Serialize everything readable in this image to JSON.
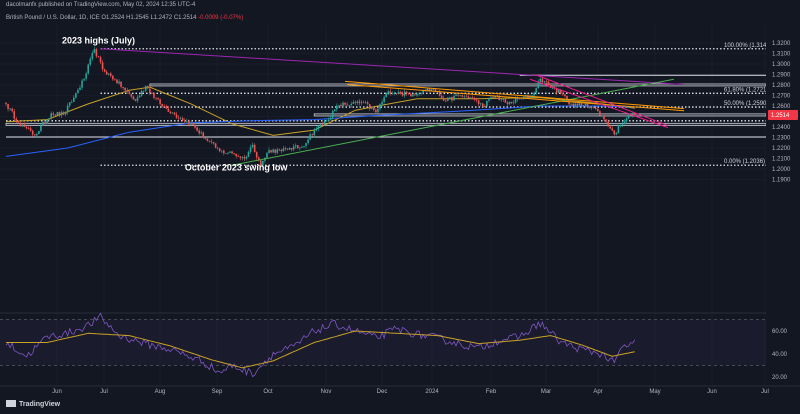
{
  "header": {
    "publisher": "dacolmanfx published on TradingView.com, May 02, 2024 12:35 UTC-4",
    "symbol": "British Pound / U.S. Dollar, 1D, ICE",
    "open": "O1.2524",
    "high": "H1.2545",
    "low": "L1.2472",
    "close": "C1.2514",
    "change": "-0.0009 (-0.07%)"
  },
  "brand": {
    "logo_text": "TradingView"
  },
  "colors": {
    "background": "#131722",
    "up_candle": "#26a69a",
    "down_candle": "#ef5350",
    "ma_short": "#c9a227",
    "ma_long": "#2962ff",
    "uptrend": "#4caf50",
    "downtrend_purple": "#9c27b0",
    "channel_orange": "#ff9800",
    "channel_pink": "#e91e8c",
    "rsi_line": "#7e57c2",
    "rsi_signal": "#c9a227",
    "price_badge": "#f23645"
  },
  "chart_data": [
    {
      "type": "candlestick",
      "title": "British Pound / U.S. Dollar, 1D, ICE",
      "x_tick_labels": [
        "Jun",
        "Jul",
        "Aug",
        "Sep",
        "Oct",
        "Nov",
        "Dec",
        "2024",
        "Feb",
        "Mar",
        "Apr",
        "May",
        "Jun",
        "Jul"
      ],
      "y_tick_labels": [
        "1.1900",
        "1.2000",
        "1.2100",
        "1.2200",
        "1.2300",
        "1.2400",
        "1.2500",
        "1.2600",
        "1.2700",
        "1.2800",
        "1.2900",
        "1.3000",
        "1.3100",
        "1.3200"
      ],
      "ylim": [
        1.19,
        1.325
      ],
      "last_price": "1.2514",
      "swing_path": [
        {
          "t": 0,
          "p": 1.262
        },
        {
          "t": 6,
          "p": 1.244
        },
        {
          "t": 9,
          "p": 1.24
        },
        {
          "t": 14,
          "p": 1.232
        },
        {
          "t": 22,
          "p": 1.253
        },
        {
          "t": 28,
          "p": 1.252
        },
        {
          "t": 33,
          "p": 1.268
        },
        {
          "t": 38,
          "p": 1.286
        },
        {
          "t": 43,
          "p": 1.3142
        },
        {
          "t": 47,
          "p": 1.295
        },
        {
          "t": 53,
          "p": 1.285
        },
        {
          "t": 58,
          "p": 1.275
        },
        {
          "t": 63,
          "p": 1.265
        },
        {
          "t": 68,
          "p": 1.279
        },
        {
          "t": 75,
          "p": 1.262
        },
        {
          "t": 82,
          "p": 1.252
        },
        {
          "t": 90,
          "p": 1.243
        },
        {
          "t": 97,
          "p": 1.229
        },
        {
          "t": 104,
          "p": 1.217
        },
        {
          "t": 110,
          "p": 1.215
        },
        {
          "t": 116,
          "p": 1.21
        },
        {
          "t": 120,
          "p": 1.223
        },
        {
          "t": 124,
          "p": 1.2036
        },
        {
          "t": 128,
          "p": 1.218
        },
        {
          "t": 134,
          "p": 1.217
        },
        {
          "t": 138,
          "p": 1.22
        },
        {
          "t": 144,
          "p": 1.221
        },
        {
          "t": 150,
          "p": 1.237
        },
        {
          "t": 156,
          "p": 1.246
        },
        {
          "t": 162,
          "p": 1.261
        },
        {
          "t": 168,
          "p": 1.262
        },
        {
          "t": 174,
          "p": 1.263
        },
        {
          "t": 180,
          "p": 1.254
        },
        {
          "t": 186,
          "p": 1.274
        },
        {
          "t": 192,
          "p": 1.272
        },
        {
          "t": 198,
          "p": 1.271
        },
        {
          "t": 203,
          "p": 1.275
        },
        {
          "t": 208,
          "p": 1.276
        },
        {
          "t": 214,
          "p": 1.265
        },
        {
          "t": 220,
          "p": 1.27
        },
        {
          "t": 226,
          "p": 1.268
        },
        {
          "t": 232,
          "p": 1.26
        },
        {
          "t": 238,
          "p": 1.27
        },
        {
          "t": 244,
          "p": 1.262
        },
        {
          "t": 250,
          "p": 1.267
        },
        {
          "t": 256,
          "p": 1.27
        },
        {
          "t": 260,
          "p": 1.286
        },
        {
          "t": 264,
          "p": 1.28
        },
        {
          "t": 270,
          "p": 1.272
        },
        {
          "t": 276,
          "p": 1.26
        },
        {
          "t": 282,
          "p": 1.262
        },
        {
          "t": 288,
          "p": 1.255
        },
        {
          "t": 292,
          "p": 1.245
        },
        {
          "t": 296,
          "p": 1.233
        },
        {
          "t": 299,
          "p": 1.242
        },
        {
          "t": 303,
          "p": 1.252
        },
        {
          "t": 306,
          "p": 1.2514
        }
      ],
      "moving_averages": [
        {
          "name": "",
          "color": "#c9a227",
          "points": [
            [
              0,
              1.245
            ],
            [
              20,
              1.247
            ],
            [
              40,
              1.262
            ],
            [
              60,
              1.275
            ],
            [
              70,
              1.278
            ],
            [
              90,
              1.262
            ],
            [
              110,
              1.243
            ],
            [
              130,
              1.232
            ],
            [
              150,
              1.237
            ],
            [
              170,
              1.256
            ],
            [
              200,
              1.267
            ],
            [
              230,
              1.267
            ],
            [
              260,
              1.268
            ],
            [
              290,
              1.262
            ],
            [
              306,
              1.258
            ]
          ]
        },
        {
          "name": "",
          "color": "#2962ff",
          "points": [
            [
              0,
              1.212
            ],
            [
              30,
              1.22
            ],
            [
              60,
              1.235
            ],
            [
              90,
              1.244
            ],
            [
              120,
              1.246
            ],
            [
              150,
              1.247
            ],
            [
              180,
              1.251
            ],
            [
              220,
              1.255
            ],
            [
              260,
              1.26
            ],
            [
              290,
              1.26
            ],
            [
              306,
              1.259
            ]
          ]
        }
      ],
      "horizontal_levels": [
        {
          "price": 1.3145,
          "label": "100.00% (1.3145)",
          "style": "dotted",
          "start_t": 46
        },
        {
          "price": 1.2893,
          "label": "",
          "style": "solid",
          "start_t": 250
        },
        {
          "price": 1.2721,
          "label": "61.80% (1.2721)",
          "style": "dotted",
          "start_t": 46
        },
        {
          "price": 1.259,
          "label": "50.00% (1.2590)",
          "style": "dotted",
          "start_t": 46
        },
        {
          "price": 1.2459,
          "label": "",
          "style": "dotted",
          "start_t": 0
        },
        {
          "price": 1.2305,
          "label": "",
          "style": "solid",
          "start_t": 0
        },
        {
          "price": 1.2036,
          "label": "0.00% (1.2036)",
          "style": "dotted",
          "start_t": 46
        }
      ],
      "zones": [
        {
          "from": 1.2795,
          "to": 1.281,
          "start_t": 70
        },
        {
          "from": 1.2505,
          "to": 1.2525,
          "start_t": 150
        },
        {
          "from": 1.2415,
          "to": 1.2435,
          "start_t": 0
        }
      ],
      "trendlines": [
        {
          "color": "#9c27b0",
          "from": [
            46,
            1.3145
          ],
          "to": [
            330,
            1.2805
          ]
        },
        {
          "color": "#4caf50",
          "from": [
            110,
            1.2036
          ],
          "to": [
            325,
            1.2855
          ]
        },
        {
          "color": "#ff9800",
          "from": [
            165,
            1.2835
          ],
          "to": [
            330,
            1.2575
          ]
        },
        {
          "color": "#ff9800",
          "from": [
            166,
            1.2805
          ],
          "to": [
            330,
            1.2555
          ]
        },
        {
          "color": "#e91e8c",
          "from": [
            258,
            1.2895
          ],
          "to": [
            322,
            1.2415
          ]
        },
        {
          "color": "#e91e8c",
          "from": [
            255,
            1.2855
          ],
          "to": [
            322,
            1.2395
          ]
        }
      ],
      "annotations": [
        {
          "text": "2023 highs (July)",
          "t": 45,
          "p": 1.3195
        },
        {
          "text": "October 2023 swing low",
          "t": 112,
          "p": 1.1985
        }
      ]
    },
    {
      "type": "line",
      "x_tick_labels": [],
      "y_tick_labels": [
        "60.00",
        "40.00",
        "20.00"
      ],
      "ylim": [
        15,
        78
      ],
      "levels": [
        70,
        30
      ],
      "series": [
        {
          "name": "",
          "color": "#7e57c2",
          "anchors": [
            [
              0,
              50
            ],
            [
              10,
              38
            ],
            [
              20,
              55
            ],
            [
              30,
              58
            ],
            [
              40,
              65
            ],
            [
              46,
              72
            ],
            [
              55,
              56
            ],
            [
              70,
              48
            ],
            [
              80,
              44
            ],
            [
              95,
              34
            ],
            [
              104,
              24
            ],
            [
              110,
              30
            ],
            [
              120,
              23
            ],
            [
              130,
              40
            ],
            [
              140,
              46
            ],
            [
              150,
              60
            ],
            [
              160,
              66
            ],
            [
              170,
              60
            ],
            [
              180,
              54
            ],
            [
              190,
              62
            ],
            [
              200,
              57
            ],
            [
              210,
              54
            ],
            [
              220,
              49
            ],
            [
              230,
              45
            ],
            [
              240,
              52
            ],
            [
              250,
              55
            ],
            [
              260,
              67
            ],
            [
              270,
              50
            ],
            [
              280,
              44
            ],
            [
              290,
              40
            ],
            [
              296,
              32
            ],
            [
              300,
              46
            ],
            [
              306,
              50
            ]
          ]
        },
        {
          "name": "",
          "color": "#c9a227",
          "anchors": [
            [
              0,
              50
            ],
            [
              20,
              50
            ],
            [
              40,
              58
            ],
            [
              60,
              56
            ],
            [
              80,
              47
            ],
            [
              100,
              35
            ],
            [
              115,
              28
            ],
            [
              130,
              34
            ],
            [
              150,
              50
            ],
            [
              170,
              60
            ],
            [
              190,
              58
            ],
            [
              210,
              56
            ],
            [
              230,
              49
            ],
            [
              250,
              52
            ],
            [
              265,
              56
            ],
            [
              280,
              48
            ],
            [
              295,
              38
            ],
            [
              306,
              42
            ]
          ]
        }
      ]
    }
  ]
}
